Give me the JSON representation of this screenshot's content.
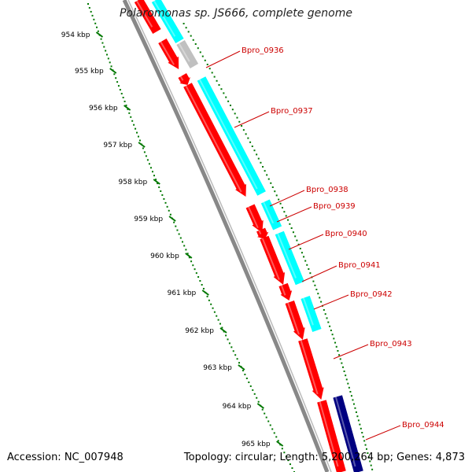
{
  "title": "Polaromonas sp. JS666, complete genome",
  "accession": "Accession: NC_007948",
  "summary": "Topology: circular; Length: 5,200,264 bp; Genes: 4,873",
  "colors": {
    "forward_cds": "#ff0000",
    "reverse_cds": "#00ffff",
    "other_feature": "#000080",
    "pseudo_feature": "#c0c0c0",
    "ruler_tick": "#007700",
    "backbone": "#888888",
    "label_line": "#cc0000"
  },
  "ruler": {
    "labels": [
      "954 kbp",
      "955 kbp",
      "956 kbp",
      "957 kbp",
      "958 kbp",
      "959 kbp",
      "960 kbp",
      "961 kbp",
      "962 kbp",
      "963 kbp",
      "964 kbp",
      "965 kbp"
    ]
  },
  "gene_labels": [
    "Bpro_0936",
    "Bpro_0937",
    "Bpro_0938",
    "Bpro_0939",
    "Bpro_0940",
    "Bpro_0941",
    "Bpro_0942",
    "Bpro_0943",
    "Bpro_0944"
  ]
}
